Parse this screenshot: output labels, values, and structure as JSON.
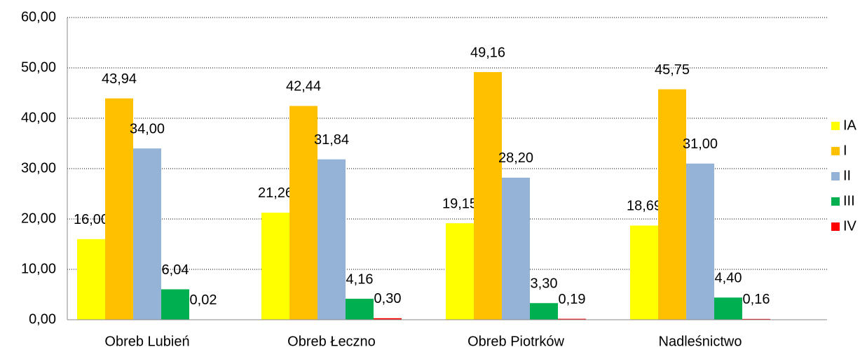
{
  "chart_data": {
    "type": "bar",
    "categories": [
      "Obreb Lubień",
      "Obreb Łeczno",
      "Obreb Piotrków",
      "Nadleśnictwo"
    ],
    "series": [
      {
        "name": "IA",
        "color": "#ffff00",
        "values": [
          16.0,
          21.26,
          19.15,
          18.69
        ],
        "value_labels": [
          "16,00",
          "21,26",
          "19,15",
          "18,69"
        ]
      },
      {
        "name": "I",
        "color": "#ffc000",
        "values": [
          43.94,
          42.44,
          49.16,
          45.75
        ],
        "value_labels": [
          "43,94",
          "42,44",
          "49,16",
          "45,75"
        ]
      },
      {
        "name": "II",
        "color": "#95b3d7",
        "values": [
          34.0,
          31.84,
          28.2,
          31.0
        ],
        "value_labels": [
          "34,00",
          "31,84",
          "28,20",
          "31,00"
        ]
      },
      {
        "name": "III",
        "color": "#00b050",
        "values": [
          6.04,
          4.16,
          3.3,
          4.4
        ],
        "value_labels": [
          "6,04",
          "4,16",
          "3,30",
          "4,40"
        ]
      },
      {
        "name": "IV",
        "color": "#ff0000",
        "values": [
          0.02,
          0.3,
          0.19,
          0.16
        ],
        "value_labels": [
          "0,02",
          "0,30",
          "0,19",
          "0,16"
        ]
      }
    ],
    "ylim": [
      0,
      60
    ],
    "yticks": [
      {
        "value": 0,
        "label": "0,00"
      },
      {
        "value": 10,
        "label": "10,00"
      },
      {
        "value": 20,
        "label": "20,00"
      },
      {
        "value": 30,
        "label": "30,00"
      },
      {
        "value": 40,
        "label": "40,00"
      },
      {
        "value": 50,
        "label": "50,00"
      },
      {
        "value": 60,
        "label": "60,00"
      }
    ],
    "grid": true,
    "legend": "right"
  }
}
